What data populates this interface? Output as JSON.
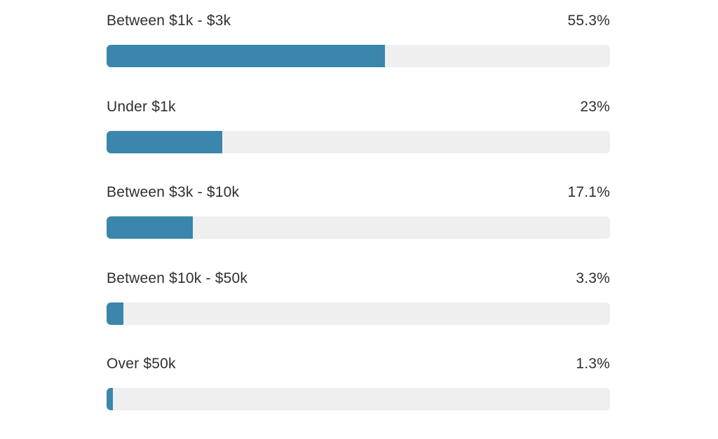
{
  "chart_data": {
    "type": "bar",
    "orientation": "horizontal",
    "categories": [
      "Between $1k - $3k",
      "Under $1k",
      "Between $3k - $10k",
      "Between $10k - $50k",
      "Over $50k"
    ],
    "values": [
      55.3,
      23,
      17.1,
      3.3,
      1.3
    ],
    "value_labels": [
      "55.3%",
      "23%",
      "17.1%",
      "3.3%",
      "1.3%"
    ],
    "xlim": [
      0,
      100
    ],
    "unit": "%",
    "grid": false,
    "legend": "none"
  },
  "colors": {
    "bar": "#3a86ad",
    "track": "#efefef",
    "text": "#2f2f2f"
  }
}
